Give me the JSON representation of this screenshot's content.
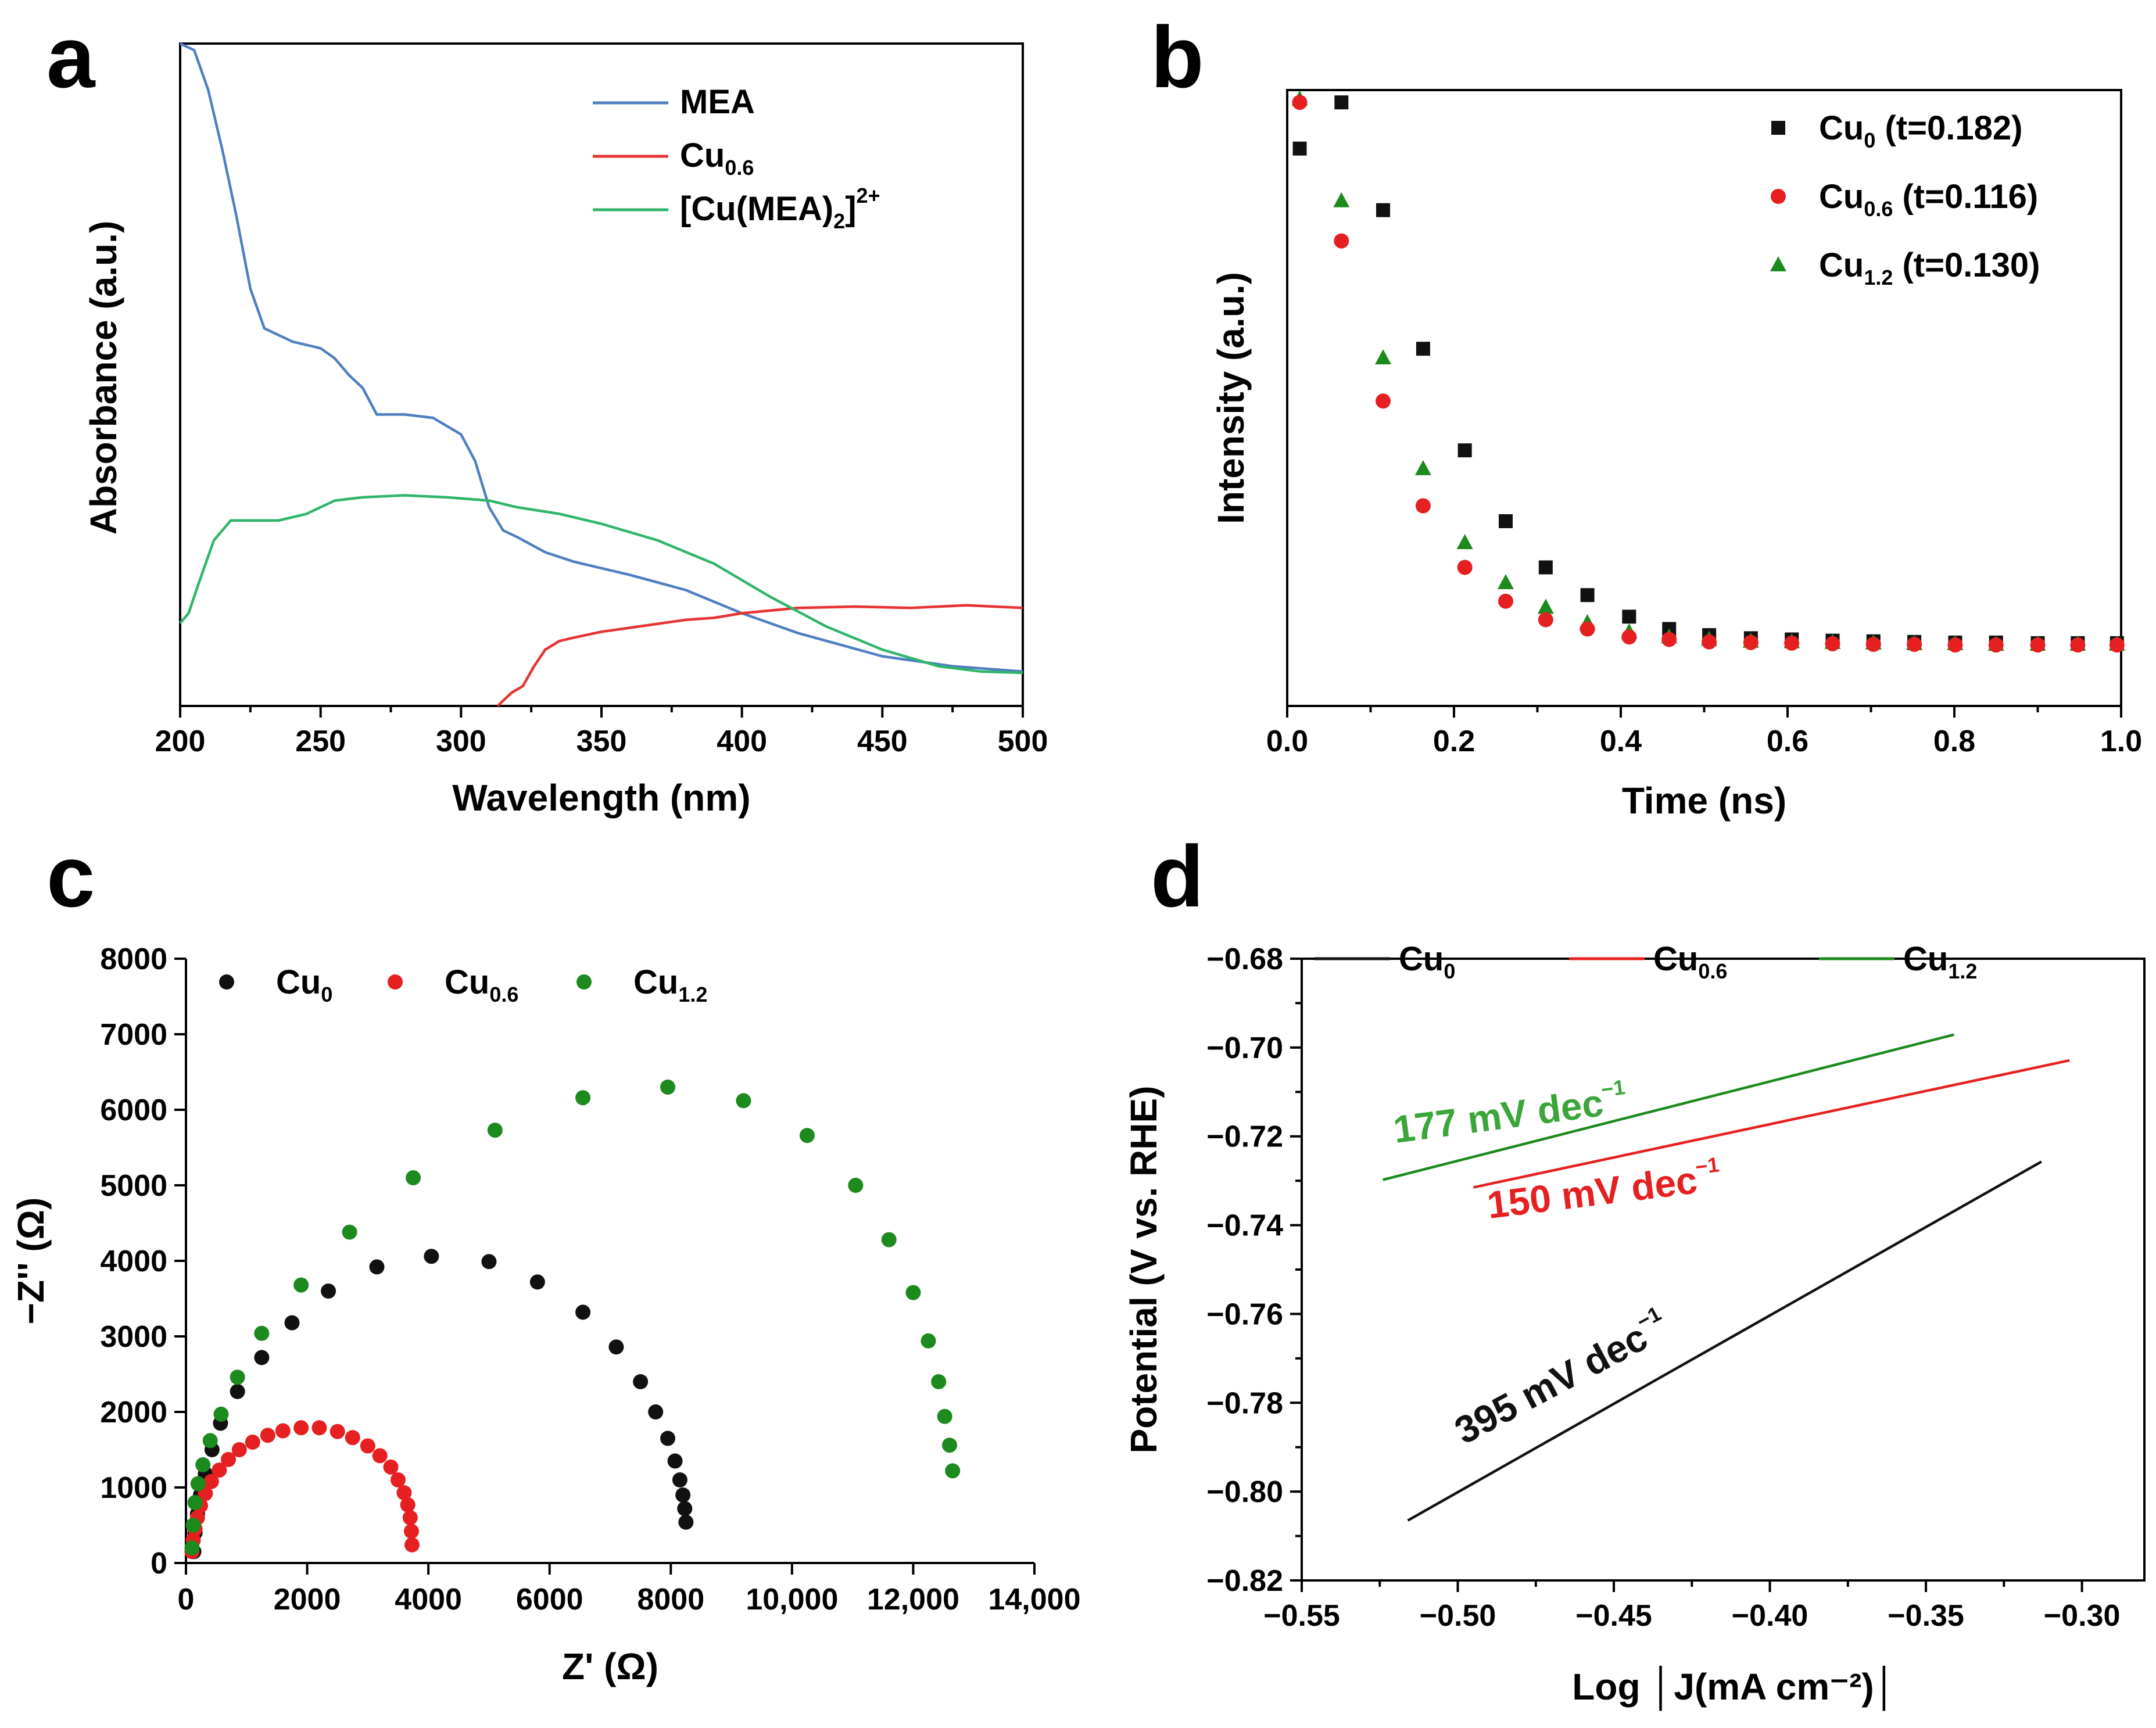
{
  "chart_data": [
    {
      "panel": "a",
      "type": "line",
      "title": "",
      "xlabel": "Wavelength (nm)",
      "ylabel": "Absorbance (a.u.)",
      "xlim": [
        200,
        500
      ],
      "ylim": [
        0,
        1
      ],
      "xticks": [
        200,
        250,
        300,
        350,
        400,
        450,
        500
      ],
      "xtick_labels": [
        "200",
        "250",
        "300",
        "350",
        "400",
        "450",
        "500"
      ],
      "grid": false,
      "legend_position": "top-center",
      "series": [
        {
          "name": "MEA",
          "label": {
            "main": "MEA",
            "sub": "",
            "close": "",
            "sup": ""
          },
          "color": "#4f7fc0",
          "x": [
            200,
            205,
            210,
            215,
            220,
            225,
            230,
            240,
            250,
            255,
            260,
            265,
            270,
            280,
            290,
            300,
            305,
            310,
            315,
            320,
            330,
            340,
            350,
            360,
            380,
            400,
            420,
            450,
            475,
            500
          ],
          "y": [
            1.0,
            0.99,
            0.93,
            0.84,
            0.74,
            0.63,
            0.57,
            0.55,
            0.54,
            0.525,
            0.5,
            0.48,
            0.44,
            0.44,
            0.435,
            0.41,
            0.37,
            0.3,
            0.265,
            0.255,
            0.232,
            0.218,
            0.208,
            0.198,
            0.175,
            0.14,
            0.11,
            0.075,
            0.06,
            0.052
          ]
        },
        {
          "name": "Cu0.6",
          "label": {
            "main": "Cu",
            "sub": "0.6",
            "close": "",
            "sup": ""
          },
          "color": "#e63232",
          "x": [
            313,
            318,
            322,
            326,
            330,
            335,
            340,
            350,
            360,
            370,
            380,
            390,
            400,
            420,
            440,
            460,
            480,
            500
          ],
          "y": [
            0.0,
            0.02,
            0.03,
            0.06,
            0.085,
            0.098,
            0.103,
            0.112,
            0.118,
            0.124,
            0.13,
            0.133,
            0.14,
            0.148,
            0.15,
            0.148,
            0.152,
            0.148
          ]
        },
        {
          "name": "[Cu(MEA)2]2+",
          "label": {
            "main": "[Cu(MEA)",
            "sub": "2",
            "close": "]",
            "sup": "2+"
          },
          "color": "#2fb56a",
          "x": [
            200,
            203,
            207,
            212,
            218,
            225,
            235,
            245,
            255,
            265,
            280,
            295,
            310,
            320,
            335,
            350,
            370,
            390,
            410,
            430,
            450,
            470,
            485,
            500
          ],
          "y": [
            0.125,
            0.14,
            0.19,
            0.25,
            0.28,
            0.28,
            0.28,
            0.29,
            0.31,
            0.315,
            0.318,
            0.315,
            0.31,
            0.3,
            0.29,
            0.275,
            0.25,
            0.215,
            0.165,
            0.12,
            0.085,
            0.06,
            0.052,
            0.05
          ]
        }
      ]
    },
    {
      "panel": "b",
      "type": "scatter",
      "title": "",
      "xlabel": "Time (ns)",
      "ylabel": "Intensity (a.u.)",
      "xlim": [
        0,
        1
      ],
      "ylim": [
        0,
        1
      ],
      "xticks": [
        0.0,
        0.2,
        0.4,
        0.6,
        0.8,
        1.0
      ],
      "xtick_labels": [
        "0.0",
        "0.2",
        "0.4",
        "0.6",
        "0.8",
        "1.0"
      ],
      "grid": false,
      "legend_position": "top-right",
      "series": [
        {
          "name": "Cu0 (t=0.182)",
          "label": {
            "main": "Cu",
            "sub": "0",
            "rest": " (t=0.182)"
          },
          "marker": "square",
          "color": "#111111",
          "x": [
            0.015,
            0.065,
            0.115,
            0.163,
            0.213,
            0.262,
            0.31,
            0.36,
            0.41,
            0.458,
            0.506,
            0.556,
            0.605,
            0.654,
            0.703,
            0.752,
            0.801,
            0.85,
            0.9,
            0.948,
            0.995
          ],
          "y": [
            0.905,
            0.98,
            0.805,
            0.58,
            0.415,
            0.3,
            0.225,
            0.18,
            0.145,
            0.125,
            0.115,
            0.11,
            0.108,
            0.106,
            0.105,
            0.104,
            0.103,
            0.103,
            0.102,
            0.102,
            0.102
          ]
        },
        {
          "name": "Cu0.6 (t=0.116)",
          "label": {
            "main": "Cu",
            "sub": "0.6",
            "rest": " (t=0.116)"
          },
          "marker": "circle",
          "color": "#e62020",
          "x": [
            0.015,
            0.065,
            0.115,
            0.163,
            0.213,
            0.262,
            0.31,
            0.36,
            0.41,
            0.458,
            0.506,
            0.556,
            0.605,
            0.654,
            0.703,
            0.752,
            0.801,
            0.85,
            0.9,
            0.948,
            0.995
          ],
          "y": [
            0.98,
            0.755,
            0.495,
            0.325,
            0.225,
            0.17,
            0.14,
            0.125,
            0.112,
            0.108,
            0.104,
            0.103,
            0.102,
            0.101,
            0.1,
            0.1,
            0.099,
            0.099,
            0.099,
            0.099,
            0.099
          ]
        },
        {
          "name": "Cu1.2 (t=0.130)",
          "label": {
            "main": "Cu",
            "sub": "1.2",
            "rest": " (t=0.130)"
          },
          "marker": "triangle",
          "color": "#1d8a1d",
          "x": [
            0.015,
            0.065,
            0.115,
            0.163,
            0.213,
            0.262,
            0.31,
            0.36,
            0.41,
            0.458,
            0.506,
            0.556,
            0.605,
            0.654,
            0.703,
            0.752,
            0.801,
            0.85,
            0.9,
            0.948,
            0.995
          ],
          "y": [
            0.985,
            0.82,
            0.565,
            0.385,
            0.265,
            0.2,
            0.16,
            0.135,
            0.12,
            0.112,
            0.108,
            0.105,
            0.104,
            0.103,
            0.102,
            0.101,
            0.101,
            0.1,
            0.1,
            0.1,
            0.1
          ]
        }
      ]
    },
    {
      "panel": "c",
      "type": "scatter",
      "title": "",
      "xlabel": "Z' (Ω)",
      "ylabel": "−Z'' (Ω)",
      "xlim": [
        0,
        14000
      ],
      "ylim": [
        0,
        8000
      ],
      "xticks": [
        0,
        2000,
        4000,
        6000,
        8000,
        10000,
        12000,
        14000
      ],
      "xtick_labels": [
        "0",
        "2000",
        "4000",
        "6000",
        "8000",
        "10,000",
        "12,000",
        "14,000"
      ],
      "yticks": [
        0,
        1000,
        2000,
        3000,
        4000,
        5000,
        6000,
        7000,
        8000
      ],
      "ytick_labels": [
        "0",
        "1000",
        "2000",
        "3000",
        "4000",
        "5000",
        "6000",
        "7000",
        "8000"
      ],
      "grid": false,
      "legend_position": "top-left",
      "series": [
        {
          "name": "Cu0",
          "label": {
            "main": "Cu",
            "sub": "0"
          },
          "marker": "circle",
          "color": "#111111",
          "x": [
            130,
            150,
            190,
            240,
            320,
            430,
            570,
            850,
            1250,
            1750,
            2350,
            3150,
            4050,
            5000,
            5800,
            6550,
            7100,
            7500,
            7750,
            7950,
            8070,
            8150,
            8200,
            8230,
            8250
          ],
          "y": [
            150,
            400,
            650,
            900,
            1180,
            1500,
            1850,
            2270,
            2720,
            3180,
            3600,
            3920,
            4060,
            3990,
            3720,
            3320,
            2860,
            2400,
            2000,
            1650,
            1350,
            1100,
            900,
            720,
            540
          ]
        },
        {
          "name": "Cu0.6",
          "label": {
            "main": "Cu",
            "sub": "0.6"
          },
          "marker": "circle",
          "color": "#e62020",
          "x": [
            100,
            120,
            150,
            190,
            240,
            320,
            420,
            550,
            700,
            880,
            1100,
            1350,
            1600,
            1900,
            2200,
            2500,
            2750,
            3000,
            3200,
            3380,
            3500,
            3600,
            3660,
            3700,
            3720,
            3730
          ],
          "y": [
            150,
            300,
            450,
            600,
            760,
            920,
            1080,
            1230,
            1370,
            1500,
            1600,
            1690,
            1750,
            1790,
            1790,
            1740,
            1660,
            1550,
            1420,
            1270,
            1100,
            930,
            770,
            600,
            420,
            240
          ]
        },
        {
          "name": "Cu1.2",
          "label": {
            "main": "Cu",
            "sub": "1.2"
          },
          "marker": "circle",
          "color": "#1d8a1d",
          "x": [
            100,
            120,
            150,
            200,
            280,
            400,
            580,
            850,
            1250,
            1900,
            2700,
            3750,
            5100,
            6550,
            7950,
            9200,
            10250,
            11050,
            11600,
            12000,
            12250,
            12420,
            12520,
            12600,
            12650
          ],
          "y": [
            200,
            500,
            800,
            1050,
            1300,
            1620,
            1970,
            2460,
            3040,
            3680,
            4380,
            5100,
            5730,
            6160,
            6300,
            6120,
            5660,
            5000,
            4280,
            3580,
            2940,
            2400,
            1940,
            1560,
            1220
          ]
        }
      ]
    },
    {
      "panel": "d",
      "type": "line",
      "title": "",
      "xlabel": "Log │J(mA cm⁻²)│",
      "ylabel": "Potential (V vs. RHE)",
      "xlim": [
        -0.55,
        -0.28
      ],
      "ylim": [
        -0.82,
        -0.68
      ],
      "xticks": [
        -0.55,
        -0.5,
        -0.45,
        -0.4,
        -0.35,
        -0.3
      ],
      "xtick_labels": [
        "−0.55",
        "−0.50",
        "−0.45",
        "−0.40",
        "−0.35",
        "−0.30"
      ],
      "yticks": [
        -0.82,
        -0.8,
        -0.78,
        -0.76,
        -0.74,
        -0.72,
        -0.7,
        -0.68
      ],
      "ytick_labels": [
        "−0.82",
        "−0.80",
        "−0.78",
        "−0.76",
        "−0.74",
        "−0.72",
        "−0.70",
        "−0.68"
      ],
      "grid": false,
      "legend_position": "top",
      "series": [
        {
          "name": "Cu0",
          "label": {
            "main": "Cu",
            "sub": "0"
          },
          "color": "#111111",
          "x": [
            -0.516,
            -0.313
          ],
          "y": [
            -0.8065,
            -0.7257
          ]
        },
        {
          "name": "Cu0.6",
          "label": {
            "main": "Cu",
            "sub": "0.6"
          },
          "color": "#e62020",
          "x": [
            -0.495,
            -0.304
          ],
          "y": [
            -0.7315,
            -0.7029
          ]
        },
        {
          "name": "Cu1.2",
          "label": {
            "main": "Cu",
            "sub": "1.2"
          },
          "color": "#1d8a1d",
          "x": [
            -0.524,
            -0.341
          ],
          "y": [
            -0.7298,
            -0.6971
          ]
        }
      ],
      "annotations": [
        {
          "text": "177 mV dec",
          "sup": "−1",
          "color": "#3aa63a",
          "x": -0.52,
          "y": -0.7215,
          "rotate": -7.5
        },
        {
          "text": "150 mV dec",
          "sup": "−1",
          "color": "#e62020",
          "x": -0.49,
          "y": -0.7385,
          "rotate": -7
        },
        {
          "text": "395 mV dec",
          "sup": "−1",
          "color": "#111111",
          "x": -0.498,
          "y": -0.7895,
          "rotate": -28
        }
      ]
    }
  ]
}
